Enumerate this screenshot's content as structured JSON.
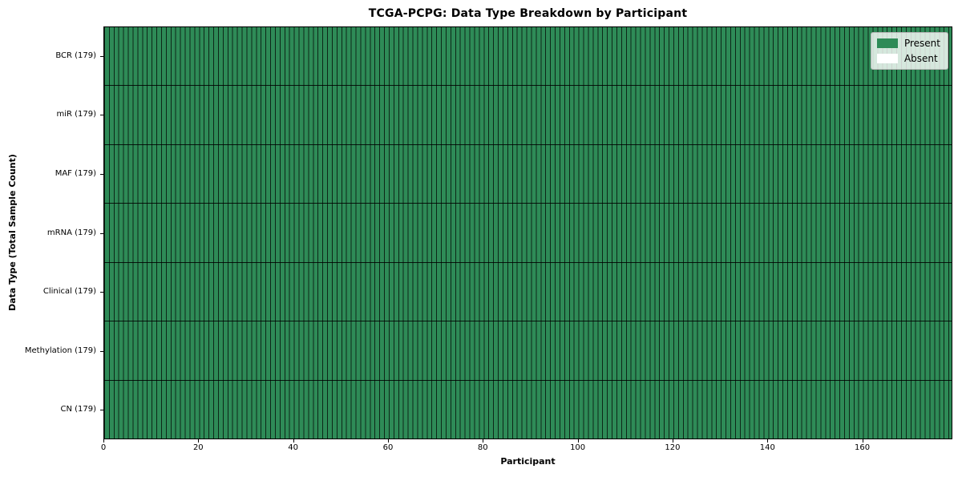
{
  "chart_data": {
    "type": "heatmap",
    "title": "TCGA-PCPG: Data Type Breakdown by Participant",
    "xlabel": "Participant",
    "ylabel": "Data Type (Total Sample Count)",
    "participants": 179,
    "x_range": [
      0,
      179
    ],
    "x_ticks": [
      0,
      20,
      40,
      60,
      80,
      100,
      120,
      140,
      160
    ],
    "rows": [
      {
        "label": "BCR (179)",
        "data_type": "BCR",
        "total": 179,
        "present": 179,
        "absent": 0
      },
      {
        "label": "miR (179)",
        "data_type": "miR",
        "total": 179,
        "present": 179,
        "absent": 0
      },
      {
        "label": "MAF (179)",
        "data_type": "MAF",
        "total": 179,
        "present": 179,
        "absent": 0
      },
      {
        "label": "mRNA (179)",
        "data_type": "mRNA",
        "total": 179,
        "present": 179,
        "absent": 0
      },
      {
        "label": "Clinical (179)",
        "data_type": "Clinical",
        "total": 179,
        "present": 179,
        "absent": 0
      },
      {
        "label": "Methylation (179)",
        "data_type": "Methylation",
        "total": 179,
        "present": 179,
        "absent": 0
      },
      {
        "label": "CN (179)",
        "data_type": "CN",
        "total": 179,
        "present": 179,
        "absent": 0
      }
    ],
    "legend": [
      {
        "label": "Present",
        "color": "#2e8b57"
      },
      {
        "label": "Absent",
        "color": "#ffffff"
      }
    ],
    "colors": {
      "present": "#2e8b57",
      "absent": "#ffffff",
      "cell_edge": "#000000",
      "background": "#ffffff"
    },
    "grid": true,
    "legend_position": "upper right"
  }
}
